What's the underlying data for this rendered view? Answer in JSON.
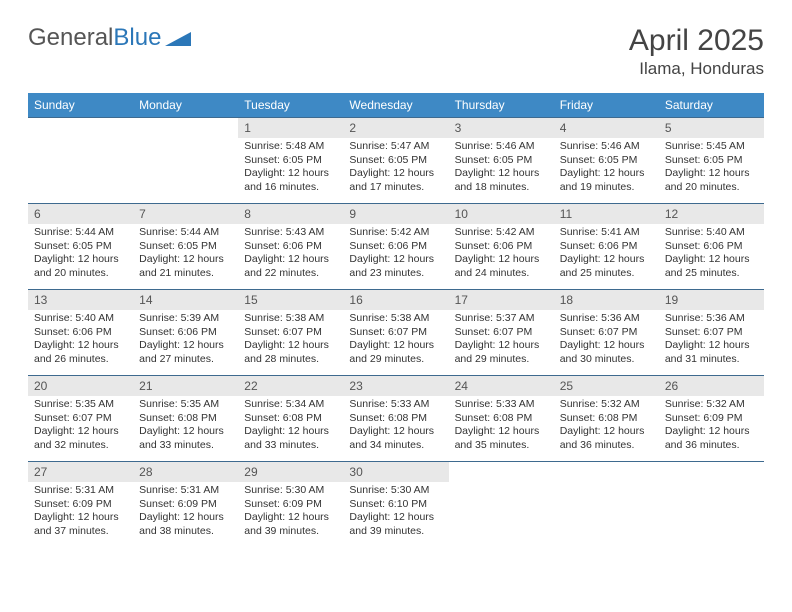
{
  "brand": {
    "part1": "General",
    "part2": "Blue"
  },
  "title": "April 2025",
  "location": "Ilama, Honduras",
  "colors": {
    "header_bg": "#3e89c5",
    "header_text": "#ffffff",
    "daynum_bg": "#e8e8e8",
    "border": "#3e6a8f",
    "brand_blue": "#2b77b8"
  },
  "weekdays": [
    "Sunday",
    "Monday",
    "Tuesday",
    "Wednesday",
    "Thursday",
    "Friday",
    "Saturday"
  ],
  "weeks": [
    [
      null,
      null,
      {
        "n": "1",
        "sr": "5:48 AM",
        "ss": "6:05 PM",
        "dl": "12 hours and 16 minutes."
      },
      {
        "n": "2",
        "sr": "5:47 AM",
        "ss": "6:05 PM",
        "dl": "12 hours and 17 minutes."
      },
      {
        "n": "3",
        "sr": "5:46 AM",
        "ss": "6:05 PM",
        "dl": "12 hours and 18 minutes."
      },
      {
        "n": "4",
        "sr": "5:46 AM",
        "ss": "6:05 PM",
        "dl": "12 hours and 19 minutes."
      },
      {
        "n": "5",
        "sr": "5:45 AM",
        "ss": "6:05 PM",
        "dl": "12 hours and 20 minutes."
      }
    ],
    [
      {
        "n": "6",
        "sr": "5:44 AM",
        "ss": "6:05 PM",
        "dl": "12 hours and 20 minutes."
      },
      {
        "n": "7",
        "sr": "5:44 AM",
        "ss": "6:05 PM",
        "dl": "12 hours and 21 minutes."
      },
      {
        "n": "8",
        "sr": "5:43 AM",
        "ss": "6:06 PM",
        "dl": "12 hours and 22 minutes."
      },
      {
        "n": "9",
        "sr": "5:42 AM",
        "ss": "6:06 PM",
        "dl": "12 hours and 23 minutes."
      },
      {
        "n": "10",
        "sr": "5:42 AM",
        "ss": "6:06 PM",
        "dl": "12 hours and 24 minutes."
      },
      {
        "n": "11",
        "sr": "5:41 AM",
        "ss": "6:06 PM",
        "dl": "12 hours and 25 minutes."
      },
      {
        "n": "12",
        "sr": "5:40 AM",
        "ss": "6:06 PM",
        "dl": "12 hours and 25 minutes."
      }
    ],
    [
      {
        "n": "13",
        "sr": "5:40 AM",
        "ss": "6:06 PM",
        "dl": "12 hours and 26 minutes."
      },
      {
        "n": "14",
        "sr": "5:39 AM",
        "ss": "6:06 PM",
        "dl": "12 hours and 27 minutes."
      },
      {
        "n": "15",
        "sr": "5:38 AM",
        "ss": "6:07 PM",
        "dl": "12 hours and 28 minutes."
      },
      {
        "n": "16",
        "sr": "5:38 AM",
        "ss": "6:07 PM",
        "dl": "12 hours and 29 minutes."
      },
      {
        "n": "17",
        "sr": "5:37 AM",
        "ss": "6:07 PM",
        "dl": "12 hours and 29 minutes."
      },
      {
        "n": "18",
        "sr": "5:36 AM",
        "ss": "6:07 PM",
        "dl": "12 hours and 30 minutes."
      },
      {
        "n": "19",
        "sr": "5:36 AM",
        "ss": "6:07 PM",
        "dl": "12 hours and 31 minutes."
      }
    ],
    [
      {
        "n": "20",
        "sr": "5:35 AM",
        "ss": "6:07 PM",
        "dl": "12 hours and 32 minutes."
      },
      {
        "n": "21",
        "sr": "5:35 AM",
        "ss": "6:08 PM",
        "dl": "12 hours and 33 minutes."
      },
      {
        "n": "22",
        "sr": "5:34 AM",
        "ss": "6:08 PM",
        "dl": "12 hours and 33 minutes."
      },
      {
        "n": "23",
        "sr": "5:33 AM",
        "ss": "6:08 PM",
        "dl": "12 hours and 34 minutes."
      },
      {
        "n": "24",
        "sr": "5:33 AM",
        "ss": "6:08 PM",
        "dl": "12 hours and 35 minutes."
      },
      {
        "n": "25",
        "sr": "5:32 AM",
        "ss": "6:08 PM",
        "dl": "12 hours and 36 minutes."
      },
      {
        "n": "26",
        "sr": "5:32 AM",
        "ss": "6:09 PM",
        "dl": "12 hours and 36 minutes."
      }
    ],
    [
      {
        "n": "27",
        "sr": "5:31 AM",
        "ss": "6:09 PM",
        "dl": "12 hours and 37 minutes."
      },
      {
        "n": "28",
        "sr": "5:31 AM",
        "ss": "6:09 PM",
        "dl": "12 hours and 38 minutes."
      },
      {
        "n": "29",
        "sr": "5:30 AM",
        "ss": "6:09 PM",
        "dl": "12 hours and 39 minutes."
      },
      {
        "n": "30",
        "sr": "5:30 AM",
        "ss": "6:10 PM",
        "dl": "12 hours and 39 minutes."
      },
      null,
      null,
      null
    ]
  ],
  "labels": {
    "sunrise": "Sunrise: ",
    "sunset": "Sunset: ",
    "daylight": "Daylight: "
  }
}
